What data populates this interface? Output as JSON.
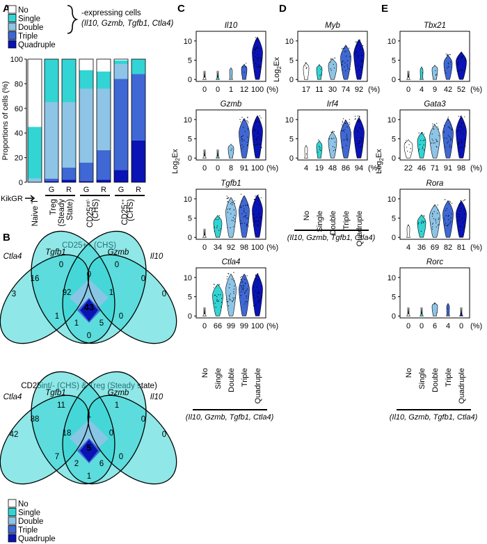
{
  "colors": {
    "No": "#ffffff",
    "Single": "#33d4d4",
    "Double": "#8ec4e6",
    "Triple": "#3f68d4",
    "Quadruple": "#0a13b4",
    "G": "#2e9a2e",
    "R": "#e23a3a"
  },
  "panel_labels": [
    "A",
    "B",
    "C",
    "D",
    "E"
  ],
  "legend": {
    "categories": [
      "No",
      "Single",
      "Double",
      "Triple",
      "Quadruple"
    ],
    "brace_line1": "-expressing cells",
    "brace_line2": "(Il10, Gzmb, Tgfb1, Ctla4)"
  },
  "chart_data": [
    {
      "panel": "A",
      "type": "bar",
      "stacked": true,
      "ylabel": "Proportions of cells (%)",
      "ylim": [
        0,
        100
      ],
      "yticks": [
        "0",
        "20",
        "40",
        "60",
        "80",
        "100"
      ],
      "categories": [
        "Naive T",
        "Treg G",
        "Treg R",
        "CD25int/- G",
        "CD25int/- R",
        "CD25++ G",
        "CD25++ R"
      ],
      "kikgr_label": "KikGR",
      "kik": [
        "",
        "G",
        "R",
        "G",
        "R",
        "G",
        "R"
      ],
      "groups": [
        {
          "label": "Naive T"
        },
        {
          "label": "Treg (Steady State)",
          "lines": [
            "Treg",
            "(Steady",
            "State)"
          ]
        },
        {
          "label": "CD25 int/- (CHS)",
          "lines": [
            "CD25",
            "(CHS)"
          ],
          "sup": "int/-"
        },
        {
          "label": "CD25 ++ (CHS)",
          "lines": [
            "CD25",
            "(CHS)"
          ],
          "sup": "++"
        }
      ],
      "series": [
        {
          "name": "Quadruple",
          "values": [
            0,
            1,
            2,
            1,
            2,
            10,
            34
          ]
        },
        {
          "name": "Triple",
          "values": [
            0,
            2,
            10,
            15,
            24,
            74,
            54
          ]
        },
        {
          "name": "Double",
          "values": [
            3,
            62,
            53,
            60,
            50,
            12,
            0
          ]
        },
        {
          "name": "Single",
          "values": [
            42,
            35,
            35,
            15,
            14,
            3,
            12
          ]
        },
        {
          "name": "No",
          "values": [
            55,
            0,
            0,
            9,
            10,
            1,
            0
          ]
        }
      ]
    },
    {
      "panel": "B",
      "type": "venn",
      "sets": [
        "Ctla4",
        "Tgfb1",
        "Gzmb",
        "Il10"
      ],
      "diagrams": [
        {
          "title": "CD25++ (CHS)",
          "regions": {
            "C": "3",
            "T": "0",
            "G": "0",
            "I": "0",
            "CT": "16",
            "TG": "0",
            "GI": "0",
            "CTG": "92",
            "TGI": "1",
            "CTGI": "43",
            "CG": "1",
            "TI": "0",
            "CTI": "1",
            "CGI": "5",
            "CI": "0"
          }
        },
        {
          "title": "CD25int/- (CHS) & Treg (Steady state)",
          "regions": {
            "C": "42",
            "T": "11",
            "G": "1",
            "I": "0",
            "CT": "88",
            "TG": "1",
            "GI": "0",
            "CTG": "18",
            "TGI": "0",
            "CTGI": "5",
            "CG": "7",
            "TI": "0",
            "CTI": "2",
            "CGI": "6",
            "CI": "1"
          }
        }
      ]
    },
    {
      "panel": "C",
      "type": "violin",
      "ylabel": "Log2Ex",
      "yticks": [
        "0",
        "5",
        "10"
      ],
      "genes": [
        {
          "name": "Il10",
          "pct": [
            "0",
            "0",
            "1",
            "12",
            "100"
          ]
        },
        {
          "name": "Gzmb",
          "pct": [
            "0",
            "0",
            "8",
            "91",
            "100"
          ]
        },
        {
          "name": "Tgfb1",
          "pct": [
            "0",
            "34",
            "92",
            "98",
            "100"
          ]
        },
        {
          "name": "Ctla4",
          "pct": [
            "0",
            "66",
            "99",
            "99",
            "100"
          ]
        }
      ]
    },
    {
      "panel": "D",
      "type": "violin",
      "ylabel": "Log2Ex",
      "yticks": [
        "0",
        "5",
        "10"
      ],
      "genes": [
        {
          "name": "Myb",
          "pct": [
            "17",
            "11",
            "30",
            "74",
            "92"
          ]
        },
        {
          "name": "Irf4",
          "pct": [
            "4",
            "19",
            "48",
            "86",
            "94"
          ]
        }
      ]
    },
    {
      "panel": "E",
      "type": "violin",
      "ylabel": "Log2Ex",
      "yticks": [
        "0",
        "5",
        "10"
      ],
      "genes": [
        {
          "name": "Tbx21",
          "pct": [
            "0",
            "4",
            "9",
            "42",
            "52"
          ]
        },
        {
          "name": "Gata3",
          "pct": [
            "22",
            "46",
            "71",
            "91",
            "98"
          ]
        },
        {
          "name": "Rora",
          "pct": [
            "4",
            "36",
            "69",
            "82",
            "81"
          ]
        },
        {
          "name": "Rorc",
          "pct": [
            "0",
            "0",
            "6",
            "4",
            "0"
          ]
        }
      ]
    }
  ],
  "violin_common": {
    "x_categories": [
      "No",
      "Single",
      "Double",
      "Triple",
      "Quadruple"
    ],
    "pct_unit": "(%)",
    "footer": "(Il10, Gzmb, Tgfb1, Ctla4)"
  }
}
